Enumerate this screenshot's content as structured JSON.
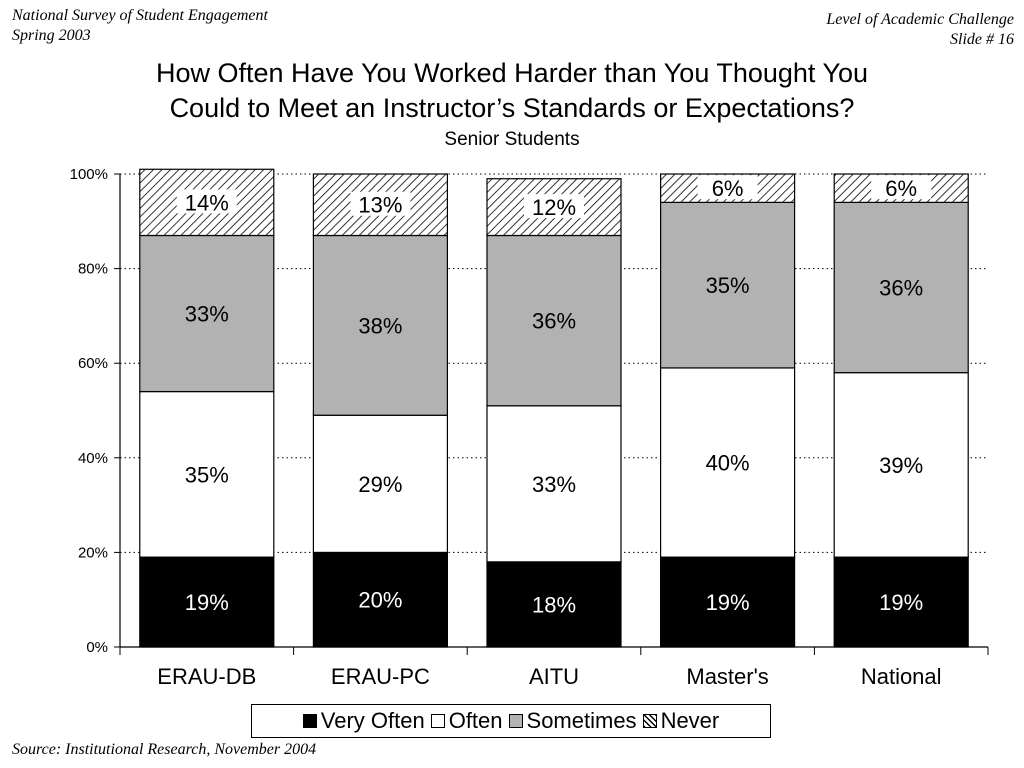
{
  "header": {
    "left_line1": "National Survey of Student Engagement",
    "left_line2": "Spring 2003",
    "right_line1": "Level of Academic Challenge",
    "right_line2": "Slide # 16"
  },
  "footer": {
    "source": "Source: Institutional Research, November 2004"
  },
  "colors": {
    "very_often": "#000000",
    "often": "#ffffff",
    "sometimes": "#b2b2b2",
    "never": "hatched"
  },
  "chart_data": {
    "type": "bar",
    "stacked": true,
    "title_line1": "How Often Have You Worked Harder than You Thought You",
    "title_line2": "Could to Meet an Instructor’s Standards or Expectations?",
    "subtitle": "Senior Students",
    "xlabel": "",
    "ylabel": "",
    "ylim": [
      0,
      100
    ],
    "yticks": [
      "0%",
      "20%",
      "40%",
      "60%",
      "80%",
      "100%"
    ],
    "grid": "horizontal dotted",
    "legend_position": "bottom",
    "categories": [
      "ERAU-DB",
      "ERAU-PC",
      "AITU",
      "Master's",
      "National"
    ],
    "series": [
      {
        "name": "Very Often",
        "values": [
          19,
          20,
          18,
          19,
          19
        ],
        "labels": [
          "19%",
          "20%",
          "18%",
          "19%",
          "19%"
        ]
      },
      {
        "name": "Often",
        "values": [
          35,
          29,
          33,
          40,
          39
        ],
        "labels": [
          "35%",
          "29%",
          "33%",
          "40%",
          "39%"
        ]
      },
      {
        "name": "Sometimes",
        "values": [
          33,
          38,
          36,
          35,
          36
        ],
        "labels": [
          "33%",
          "38%",
          "36%",
          "35%",
          "36%"
        ]
      },
      {
        "name": "Never",
        "values": [
          14,
          13,
          12,
          6,
          6
        ],
        "labels": [
          "14%",
          "13%",
          "12%",
          "6%",
          "6%"
        ]
      }
    ]
  }
}
